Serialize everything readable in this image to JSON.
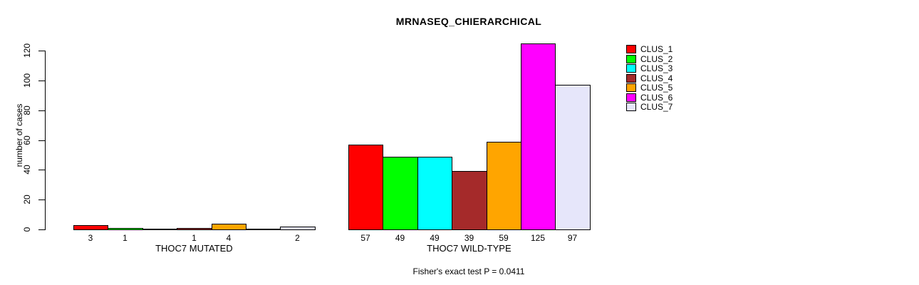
{
  "chart_data": {
    "type": "bar",
    "title": "MRNASEQ_CHIERARCHICAL",
    "ylabel": "number of cases",
    "xlabel": "",
    "annotation": "Fisher's exact test P = 0.0411",
    "y_ticks": [
      0,
      20,
      40,
      60,
      80,
      100,
      120
    ],
    "ylim": [
      0,
      125
    ],
    "grid": false,
    "legend_position": "topright",
    "categories": [
      "THOC7 MUTATED",
      "THOC7 WILD-TYPE"
    ],
    "series": [
      {
        "name": "CLUS_1",
        "color": "#ff0000",
        "values": [
          3,
          57
        ]
      },
      {
        "name": "CLUS_2",
        "color": "#00ff00",
        "values": [
          1,
          49
        ]
      },
      {
        "name": "CLUS_3",
        "color": "#00ffff",
        "values": [
          0,
          49
        ]
      },
      {
        "name": "CLUS_4",
        "color": "#a52a2a",
        "values": [
          1,
          39
        ]
      },
      {
        "name": "CLUS_5",
        "color": "#ffa500",
        "values": [
          4,
          59
        ]
      },
      {
        "name": "CLUS_6",
        "color": "#ff00ff",
        "values": [
          0,
          125
        ]
      },
      {
        "name": "CLUS_7",
        "color": "#e6e6fa",
        "values": [
          2,
          97
        ]
      }
    ],
    "bar_value_labels": true,
    "hide_zero_value_labels": true,
    "visible_value_labels": [
      "3",
      "1",
      "1",
      "4",
      "2",
      "57",
      "49",
      "49",
      "39",
      "59",
      "125",
      "97"
    ]
  }
}
